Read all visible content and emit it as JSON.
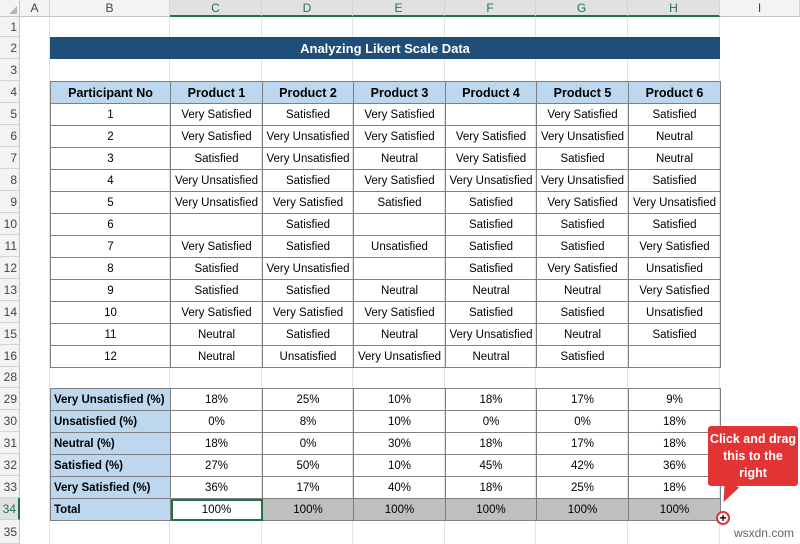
{
  "columns": [
    "A",
    "B",
    "C",
    "D",
    "E",
    "F",
    "G",
    "H",
    "I"
  ],
  "rows": [
    "1",
    "2",
    "3",
    "4",
    "5",
    "6",
    "7",
    "8",
    "9",
    "10",
    "11",
    "12",
    "13",
    "14",
    "15",
    "16",
    "28",
    "29",
    "30",
    "31",
    "32",
    "33",
    "34",
    "35"
  ],
  "title": "Analyzing Likert Scale Data",
  "table1": {
    "headers": [
      "Participant No",
      "Product 1",
      "Product 2",
      "Product 3",
      "Product 4",
      "Product 5",
      "Product 6"
    ],
    "rows": [
      [
        "1",
        "Very Satisfied",
        "Satisfied",
        "Very Satisfied",
        "",
        "Very Satisfied",
        "Satisfied"
      ],
      [
        "2",
        "Very Satisfied",
        "Very Unsatisfied",
        "Very Satisfied",
        "Very Satisfied",
        "Very Unsatisfied",
        "Neutral"
      ],
      [
        "3",
        "Satisfied",
        "Very Unsatisfied",
        "Neutral",
        "Very Satisfied",
        "Satisfied",
        "Neutral"
      ],
      [
        "4",
        "Very Unsatisfied",
        "Satisfied",
        "Very Satisfied",
        "Very Unsatisfied",
        "Very Unsatisfied",
        "Satisfied"
      ],
      [
        "5",
        "Very Unsatisfied",
        "Very Satisfied",
        "Satisfied",
        "Satisfied",
        "Very Satisfied",
        "Very Unsatisfied"
      ],
      [
        "6",
        "",
        "Satisfied",
        "",
        "Satisfied",
        "Satisfied",
        "Satisfied"
      ],
      [
        "7",
        "Very Satisfied",
        "Satisfied",
        "Unsatisfied",
        "Satisfied",
        "Satisfied",
        "Very Satisfied"
      ],
      [
        "8",
        "Satisfied",
        "Very Unsatisfied",
        "",
        "Satisfied",
        "Very Satisfied",
        "Unsatisfied"
      ],
      [
        "9",
        "Satisfied",
        "Satisfied",
        "Neutral",
        "Neutral",
        "Neutral",
        "Very Satisfied"
      ],
      [
        "10",
        "Very Satisfied",
        "Very Satisfied",
        "Very Satisfied",
        "Satisfied",
        "Satisfied",
        "Unsatisfied"
      ],
      [
        "11",
        "Neutral",
        "Satisfied",
        "Neutral",
        "Very Unsatisfied",
        "Neutral",
        "Satisfied"
      ],
      [
        "12",
        "Neutral",
        "Unsatisfied",
        "Very Unsatisfied",
        "Neutral",
        "Satisfied",
        ""
      ]
    ]
  },
  "table2": {
    "rows": [
      [
        "Very Unsatisfied (%)",
        "18%",
        "25%",
        "10%",
        "18%",
        "17%",
        "9%"
      ],
      [
        "Unsatisfied (%)",
        "0%",
        "8%",
        "10%",
        "0%",
        "0%",
        "18%"
      ],
      [
        "Neutral (%)",
        "18%",
        "0%",
        "30%",
        "18%",
        "17%",
        "18%"
      ],
      [
        "Satisfied (%)",
        "27%",
        "50%",
        "10%",
        "45%",
        "42%",
        "36%"
      ],
      [
        "Very Satisfied (%)",
        "36%",
        "17%",
        "40%",
        "18%",
        "25%",
        "18%"
      ],
      [
        "Total",
        "100%",
        "100%",
        "100%",
        "100%",
        "100%",
        "100%"
      ]
    ]
  },
  "callout": "Click and drag this to the right",
  "fill_handle": "+",
  "watermark": "wsxdn.com",
  "colors": {
    "title_bg": "#1f4e79",
    "header_bg": "#bdd7ee",
    "highlight": "#bfbfbf",
    "callout": "#e23434",
    "excel_green": "#217346"
  }
}
